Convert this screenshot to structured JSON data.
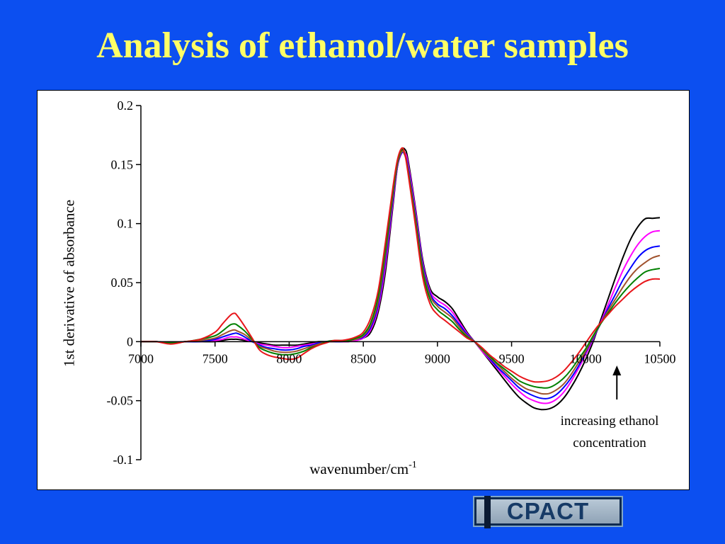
{
  "slide": {
    "title": "Analysis of ethanol/water samples",
    "background": "#0c4ff0",
    "title_color": "#ffff66"
  },
  "annotation": {
    "line1": "increasing ethanol",
    "line2": "concentration",
    "arrow_x": 10210
  },
  "logo": {
    "text": "CPACT",
    "prefix": "I"
  },
  "chart_data": {
    "type": "line",
    "title": "",
    "xlabel": "wavenumber/cm",
    "xlabel_sup": "-1",
    "ylabel": "1st derivative of absorbance",
    "xlim": [
      7000,
      10500
    ],
    "ylim": [
      -0.1,
      0.2
    ],
    "x_ticks": [
      "7000",
      "7500",
      "8000",
      "8500",
      "9000",
      "9500",
      "10000",
      "10500"
    ],
    "y_ticks": [
      "0.2",
      "0.15",
      "0.1",
      "0.05",
      "0",
      "-0.05",
      "-0.1"
    ],
    "grid": false,
    "legend": "none",
    "x": [
      7000,
      7100,
      7200,
      7300,
      7400,
      7500,
      7550,
      7600,
      7630,
      7650,
      7700,
      7750,
      7800,
      7850,
      7900,
      7950,
      8000,
      8050,
      8100,
      8150,
      8200,
      8250,
      8300,
      8350,
      8400,
      8450,
      8500,
      8550,
      8600,
      8650,
      8700,
      8730,
      8760,
      8780,
      8800,
      8850,
      8900,
      8950,
      9000,
      9050,
      9100,
      9150,
      9200,
      9250,
      9300,
      9350,
      9400,
      9450,
      9500,
      9550,
      9600,
      9650,
      9700,
      9750,
      9800,
      9850,
      9900,
      9950,
      10000,
      10050,
      10100,
      10150,
      10200,
      10250,
      10300,
      10350,
      10400,
      10450,
      10500
    ],
    "series": [
      {
        "color": "#000000",
        "values": [
          0,
          0,
          -0.001,
          0,
          0,
          0,
          0.001,
          0.002,
          0.002,
          0.002,
          0.001,
          0,
          -0.001,
          -0.002,
          -0.003,
          -0.003,
          -0.003,
          -0.003,
          -0.002,
          -0.001,
          0,
          0,
          0,
          0,
          0,
          0.001,
          0.003,
          0.008,
          0.025,
          0.06,
          0.115,
          0.148,
          0.162,
          0.163,
          0.155,
          0.115,
          0.07,
          0.045,
          0.038,
          0.034,
          0.028,
          0.018,
          0.008,
          0,
          -0.008,
          -0.016,
          -0.024,
          -0.032,
          -0.04,
          -0.047,
          -0.052,
          -0.056,
          -0.0575,
          -0.057,
          -0.054,
          -0.048,
          -0.039,
          -0.028,
          -0.015,
          0,
          0.018,
          0.036,
          0.054,
          0.071,
          0.086,
          0.097,
          0.104,
          0.1045,
          0.105
        ]
      },
      {
        "color": "#ff00ff",
        "values": [
          0,
          0,
          -0.001,
          0,
          0,
          0.001,
          0.002,
          0.004,
          0.004,
          0.004,
          0.002,
          0,
          -0.002,
          -0.003,
          -0.004,
          -0.005,
          -0.005,
          -0.004,
          -0.003,
          -0.002,
          -0.001,
          0,
          0,
          0,
          0,
          0.001,
          0.003,
          0.01,
          0.028,
          0.065,
          0.118,
          0.148,
          0.16,
          0.16,
          0.152,
          0.113,
          0.068,
          0.043,
          0.035,
          0.031,
          0.025,
          0.016,
          0.007,
          0,
          -0.008,
          -0.015,
          -0.022,
          -0.029,
          -0.036,
          -0.042,
          -0.047,
          -0.05,
          -0.052,
          -0.052,
          -0.049,
          -0.043,
          -0.034,
          -0.023,
          -0.011,
          0.002,
          0.016,
          0.031,
          0.046,
          0.06,
          0.072,
          0.082,
          0.089,
          0.093,
          0.094
        ]
      },
      {
        "color": "#0000ff",
        "values": [
          0,
          0,
          -0.001,
          0,
          0,
          0.002,
          0.004,
          0.006,
          0.007,
          0.007,
          0.004,
          0,
          -0.003,
          -0.005,
          -0.006,
          -0.007,
          -0.007,
          -0.006,
          -0.004,
          -0.003,
          -0.001,
          0,
          0,
          0,
          0.001,
          0.002,
          0.004,
          0.012,
          0.031,
          0.07,
          0.121,
          0.149,
          0.16,
          0.158,
          0.149,
          0.11,
          0.066,
          0.041,
          0.032,
          0.028,
          0.022,
          0.014,
          0.006,
          0,
          -0.007,
          -0.014,
          -0.021,
          -0.027,
          -0.033,
          -0.039,
          -0.043,
          -0.046,
          -0.048,
          -0.048,
          -0.045,
          -0.039,
          -0.031,
          -0.021,
          -0.009,
          0.003,
          0.015,
          0.028,
          0.04,
          0.052,
          0.062,
          0.071,
          0.077,
          0.08,
          0.081
        ]
      },
      {
        "color": "#a0522d",
        "values": [
          0,
          0,
          -0.001,
          0,
          0.001,
          0.003,
          0.006,
          0.009,
          0.01,
          0.009,
          0.006,
          0.001,
          -0.004,
          -0.006,
          -0.008,
          -0.009,
          -0.009,
          -0.008,
          -0.006,
          -0.004,
          -0.002,
          0,
          0,
          0.001,
          0.001,
          0.002,
          0.005,
          0.014,
          0.034,
          0.074,
          0.124,
          0.15,
          0.161,
          0.158,
          0.147,
          0.107,
          0.063,
          0.039,
          0.03,
          0.025,
          0.02,
          0.012,
          0.005,
          0,
          -0.007,
          -0.013,
          -0.019,
          -0.025,
          -0.031,
          -0.036,
          -0.04,
          -0.042,
          -0.044,
          -0.044,
          -0.041,
          -0.036,
          -0.028,
          -0.018,
          -0.008,
          0.004,
          0.015,
          0.026,
          0.036,
          0.046,
          0.055,
          0.062,
          0.067,
          0.071,
          0.073
        ]
      },
      {
        "color": "#008000",
        "values": [
          0,
          0,
          -0.001,
          0,
          0.002,
          0.005,
          0.009,
          0.014,
          0.015,
          0.014,
          0.009,
          0.002,
          -0.005,
          -0.008,
          -0.01,
          -0.011,
          -0.011,
          -0.01,
          -0.008,
          -0.005,
          -0.003,
          0,
          0.001,
          0.001,
          0.001,
          0.003,
          0.006,
          0.016,
          0.038,
          0.079,
          0.127,
          0.152,
          0.163,
          0.159,
          0.146,
          0.104,
          0.06,
          0.036,
          0.027,
          0.022,
          0.017,
          0.01,
          0.004,
          0,
          -0.006,
          -0.012,
          -0.018,
          -0.023,
          -0.028,
          -0.033,
          -0.036,
          -0.038,
          -0.039,
          -0.039,
          -0.036,
          -0.031,
          -0.024,
          -0.015,
          -0.006,
          0.005,
          0.015,
          0.024,
          0.033,
          0.041,
          0.048,
          0.054,
          0.059,
          0.061,
          0.062
        ]
      },
      {
        "color": "#e8161b",
        "values": [
          0,
          0,
          -0.002,
          0,
          0.002,
          0.008,
          0.015,
          0.022,
          0.024,
          0.022,
          0.013,
          0.003,
          -0.007,
          -0.011,
          -0.013,
          -0.014,
          -0.015,
          -0.014,
          -0.01,
          -0.006,
          -0.003,
          -0.001,
          0.001,
          0.001,
          0.002,
          0.004,
          0.008,
          0.02,
          0.043,
          0.085,
          0.131,
          0.154,
          0.164,
          0.159,
          0.144,
          0.1,
          0.055,
          0.032,
          0.023,
          0.018,
          0.013,
          0.008,
          0.003,
          0,
          -0.005,
          -0.011,
          -0.016,
          -0.021,
          -0.025,
          -0.029,
          -0.032,
          -0.034,
          -0.034,
          -0.033,
          -0.03,
          -0.025,
          -0.018,
          -0.01,
          -0.001,
          0.008,
          0.016,
          0.023,
          0.03,
          0.036,
          0.042,
          0.047,
          0.051,
          0.053,
          0.053
        ]
      }
    ]
  }
}
